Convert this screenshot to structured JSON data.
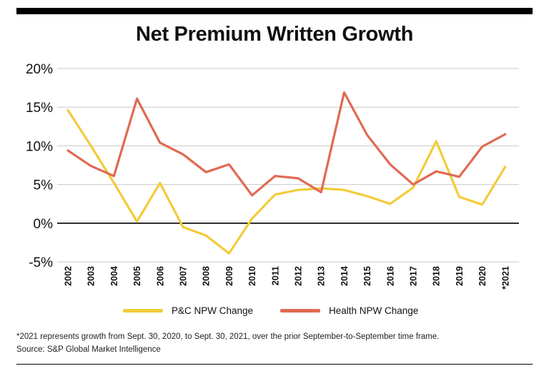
{
  "title": "Net Premium Written Growth",
  "footnote": "*2021 represents growth from Sept. 30, 2020, to Sept. 30, 2021, over the prior September-to-September time frame.",
  "source": "Source: S&P Global Market Intelligence",
  "colors": {
    "pc": "#f2cc3a",
    "health": "#e06a52",
    "axis": "#000000",
    "grid": "#c8c8c8"
  },
  "chart_data": {
    "type": "line",
    "title": "Net Premium Written Growth",
    "categories": [
      "2002",
      "2003",
      "2004",
      "2005",
      "2006",
      "2007",
      "2008",
      "2009",
      "2010",
      "2011",
      "2012",
      "2013",
      "2014",
      "2015",
      "2016",
      "2017",
      "2018",
      "2019",
      "2020",
      "*2021"
    ],
    "yticks": [
      "-5%",
      "0%",
      "5%",
      "10%",
      "15%",
      "20%"
    ],
    "ylim": [
      -5,
      20
    ],
    "grid": true,
    "legend": "bottom",
    "series": [
      {
        "name": "P&C NPW Change",
        "color": "#f2cc3a",
        "values": [
          14.6,
          10.0,
          5.2,
          0.2,
          5.2,
          -0.5,
          -1.6,
          -3.9,
          0.6,
          3.7,
          4.3,
          4.5,
          4.3,
          3.5,
          2.5,
          4.6,
          10.6,
          3.4,
          2.4,
          7.3
        ]
      },
      {
        "name": "Health NPW Change",
        "color": "#e06a52",
        "values": [
          9.4,
          7.4,
          6.1,
          16.1,
          10.4,
          8.9,
          6.6,
          7.6,
          3.6,
          6.1,
          5.8,
          4.0,
          16.9,
          11.4,
          7.6,
          5.0,
          6.7,
          6.0,
          9.9,
          11.5
        ]
      }
    ]
  }
}
